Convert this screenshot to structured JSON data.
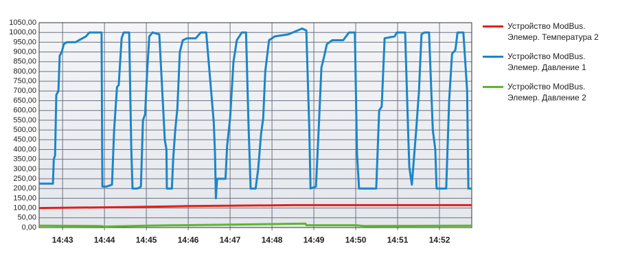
{
  "chart_data": {
    "type": "line",
    "xlim": [
      882.44,
      892.77
    ],
    "xticks": [
      {
        "value": 883,
        "label": "14:43"
      },
      {
        "value": 884,
        "label": "14:44"
      },
      {
        "value": 885,
        "label": "14:45"
      },
      {
        "value": 886,
        "label": "14:46"
      },
      {
        "value": 887,
        "label": "14:47"
      },
      {
        "value": 888,
        "label": "14:48"
      },
      {
        "value": 889,
        "label": "14:49"
      },
      {
        "value": 890,
        "label": "14:50"
      },
      {
        "value": 891,
        "label": "14:51"
      },
      {
        "value": 892,
        "label": "14:52"
      }
    ],
    "ylim": [
      0,
      1050
    ],
    "yticks": [
      {
        "value": 0,
        "label": "0,00"
      },
      {
        "value": 50,
        "label": "50,00"
      },
      {
        "value": 100,
        "label": "100,00"
      },
      {
        "value": 150,
        "label": "150,00"
      },
      {
        "value": 200,
        "label": "200,00"
      },
      {
        "value": 250,
        "label": "250,00"
      },
      {
        "value": 300,
        "label": "300,00"
      },
      {
        "value": 350,
        "label": "350,00"
      },
      {
        "value": 400,
        "label": "400,00"
      },
      {
        "value": 450,
        "label": "450,00"
      },
      {
        "value": 500,
        "label": "500,00"
      },
      {
        "value": 550,
        "label": "550,00"
      },
      {
        "value": 600,
        "label": "600,00"
      },
      {
        "value": 650,
        "label": "650,00"
      },
      {
        "value": 700,
        "label": "700,00"
      },
      {
        "value": 750,
        "label": "750,00"
      },
      {
        "value": 800,
        "label": "800,00"
      },
      {
        "value": 850,
        "label": "850,00"
      },
      {
        "value": 900,
        "label": "900,00"
      },
      {
        "value": 950,
        "label": "950,00"
      },
      {
        "value": 1000,
        "label": "1000,00"
      },
      {
        "value": 1050,
        "label": "1050,00"
      }
    ],
    "grid": true,
    "legend": "right",
    "series": [
      {
        "name": "Устройство ModBus. Элемер. Температура 2",
        "color": "#e0201b",
        "x": [
          882.44,
          884.5,
          886,
          888.5,
          892.77
        ],
        "values": [
          100,
          105,
          110,
          115,
          115
        ]
      },
      {
        "name": "Устройство ModBus. Элемер. Давление 1",
        "color": "#1b85c9",
        "x": [
          882.44,
          882.77,
          882.79,
          882.82,
          882.85,
          882.9,
          882.93,
          882.98,
          883.03,
          883.1,
          883.31,
          883.39,
          883.56,
          883.64,
          883.93,
          883.95,
          884.05,
          884.18,
          884.23,
          884.3,
          884.34,
          884.41,
          884.46,
          884.59,
          884.64,
          884.67,
          884.79,
          884.87,
          884.92,
          884.97,
          885.02,
          885.07,
          885.15,
          885.31,
          885.38,
          885.44,
          885.48,
          885.49,
          885.61,
          885.64,
          885.69,
          885.74,
          885.8,
          885.87,
          885.97,
          886.18,
          886.3,
          886.43,
          886.61,
          886.64,
          886.66,
          886.69,
          886.89,
          886.93,
          887,
          887.08,
          887.16,
          887.28,
          887.38,
          887.44,
          887.49,
          887.61,
          887.67,
          887.74,
          887.79,
          887.84,
          887.93,
          888.07,
          888.39,
          888.72,
          888.82,
          888.89,
          888.92,
          889.05,
          889.11,
          889.18,
          889.25,
          889.31,
          889.44,
          889.7,
          889.84,
          889.98,
          890.03,
          890.08,
          890.23,
          890.49,
          890.56,
          890.62,
          890.69,
          890.93,
          890.98,
          891.18,
          891.25,
          891.28,
          891.34,
          891.44,
          891.51,
          891.57,
          891.64,
          891.75,
          891.84,
          891.9,
          891.93,
          892.16,
          892.23,
          892.3,
          892.38,
          892.43,
          892.57,
          892.66,
          892.69,
          892.77
        ],
        "values": [
          225,
          225,
          350,
          370,
          680,
          700,
          880,
          900,
          940,
          950,
          950,
          960,
          980,
          1000,
          1000,
          210,
          210,
          220,
          500,
          720,
          730,
          970,
          1000,
          1000,
          400,
          200,
          200,
          210,
          550,
          580,
          800,
          980,
          1000,
          990,
          700,
          450,
          400,
          200,
          200,
          350,
          500,
          610,
          900,
          960,
          970,
          970,
          1000,
          1000,
          540,
          380,
          150,
          250,
          250,
          420,
          560,
          850,
          960,
          1000,
          1000,
          530,
          200,
          200,
          300,
          480,
          560,
          800,
          960,
          980,
          990,
          1020,
          1010,
          510,
          200,
          210,
          480,
          820,
          880,
          940,
          960,
          960,
          1000,
          1000,
          380,
          200,
          200,
          200,
          600,
          620,
          970,
          980,
          1000,
          1000,
          500,
          310,
          220,
          490,
          700,
          990,
          1000,
          1000,
          500,
          400,
          200,
          200,
          650,
          890,
          910,
          1000,
          1000,
          700,
          200,
          200
        ]
      },
      {
        "name": "Устройство ModBus. Элемер. Давление 2",
        "color": "#5db62c",
        "x": [
          882.44,
          883.9,
          884,
          885,
          888.8,
          888.82,
          890,
          890.2,
          892.77
        ],
        "values": [
          10,
          8,
          5,
          10,
          20,
          12,
          12,
          8,
          10
        ]
      }
    ]
  }
}
